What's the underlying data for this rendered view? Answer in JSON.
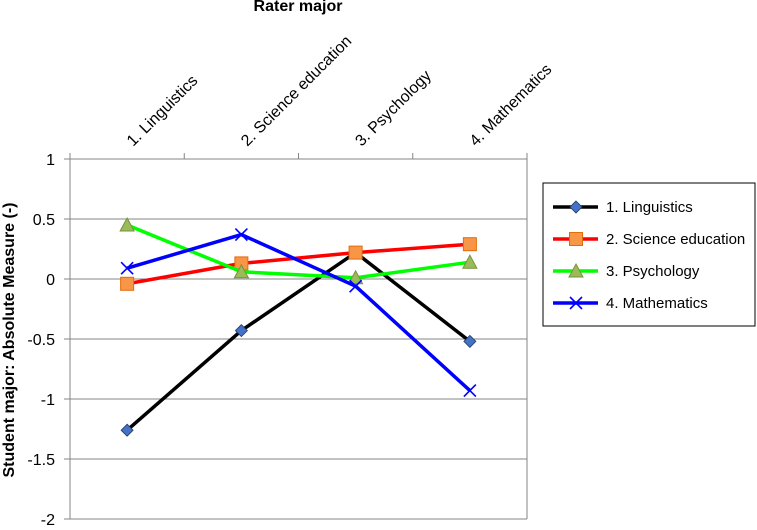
{
  "chart_data": {
    "type": "line",
    "title": "",
    "xlabel": "Rater major",
    "ylabel": "Student major: Absolute Measure (-)",
    "categories": [
      "1. Linguistics",
      "2. Science education",
      "3. Psychology",
      "4. Mathematics"
    ],
    "ylim": [
      -2,
      1
    ],
    "yticks": [
      1,
      0.5,
      0,
      -0.5,
      -1,
      -1.5,
      -2
    ],
    "ytick_labels": [
      "1",
      "0.5",
      "0",
      "-0.5",
      "-1",
      "-1.5",
      "-2"
    ],
    "grid": "horizontal",
    "x_axis_position": "top",
    "legend_position": "right",
    "series": [
      {
        "name": "1. Linguistics",
        "color": "#000000",
        "marker": "diamond",
        "marker_color": "#4472c4",
        "values": [
          -1.26,
          -0.43,
          0.22,
          -0.52
        ]
      },
      {
        "name": "2. Science education",
        "color": "#ff0000",
        "marker": "square",
        "marker_color": "#f79646",
        "values": [
          -0.04,
          0.13,
          0.22,
          0.29
        ]
      },
      {
        "name": "3. Psychology",
        "color": "#00ff00",
        "marker": "triangle",
        "marker_color": "#9bbb59",
        "values": [
          0.45,
          0.06,
          0.01,
          0.14
        ]
      },
      {
        "name": "4. Mathematics",
        "color": "#0000ff",
        "marker": "x",
        "marker_color": "#0000ff",
        "values": [
          0.09,
          0.37,
          -0.06,
          -0.93
        ]
      }
    ]
  }
}
